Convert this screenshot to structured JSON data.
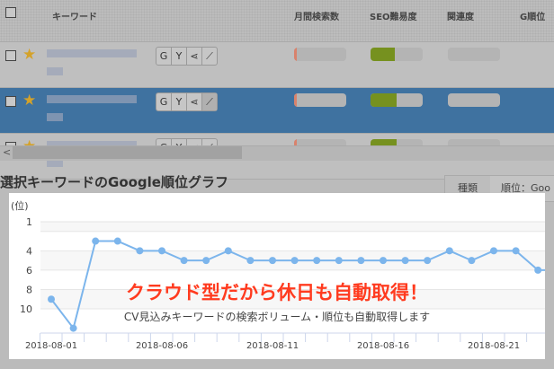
{
  "header": {
    "columns": [
      "キーワード",
      "月間検索数",
      "SEO難易度",
      "関連度",
      "G順位"
    ]
  },
  "rows": [
    {
      "selected": false,
      "volume": 0.05,
      "difficulty": 0.47
    },
    {
      "selected": true,
      "volume": 0.05,
      "difficulty": 0.5
    },
    {
      "selected": false,
      "volume": 0.05,
      "difficulty": 0.5
    }
  ],
  "row_buttons": [
    "G",
    "Y"
  ],
  "section_title": "選択キーワードのGoogle順位グラフ",
  "tab_label": "種類",
  "select_value": "順位：Goo",
  "headline": "クラウド型だから休日も自動取得！",
  "subline": "CV見込みキーワードの検索ボリューム・順位も自動取得します",
  "colors": {
    "selected_row": "#3f72a0",
    "line": "#7cb5ec",
    "headline": "#ff3b1f",
    "volume_bar": "#d9826c",
    "difficulty_bar": "#76911f"
  },
  "chart_data": {
    "type": "line",
    "ylabel": "(位)",
    "yticks": [
      "1",
      "4",
      "6",
      "8",
      "10"
    ],
    "ylim": [
      1,
      12.5
    ],
    "y_reversed": true,
    "xticks": [
      "2018-08-01",
      "2018-08-06",
      "2018-08-11",
      "2018-08-16",
      "2018-08-21"
    ],
    "x": [
      "08-01",
      "08-02",
      "08-03",
      "08-04",
      "08-05",
      "08-06",
      "08-07",
      "08-08",
      "08-09",
      "08-10",
      "08-11",
      "08-12",
      "08-13",
      "08-14",
      "08-15",
      "08-16",
      "08-17",
      "08-18",
      "08-19",
      "08-20",
      "08-21",
      "08-22",
      "08-23",
      "08-24"
    ],
    "values": [
      9,
      12,
      3,
      3,
      4,
      4,
      5,
      5,
      4,
      5,
      5,
      5,
      5,
      5,
      5,
      5,
      5,
      5,
      4,
      5,
      4,
      4,
      6,
      6
    ]
  }
}
